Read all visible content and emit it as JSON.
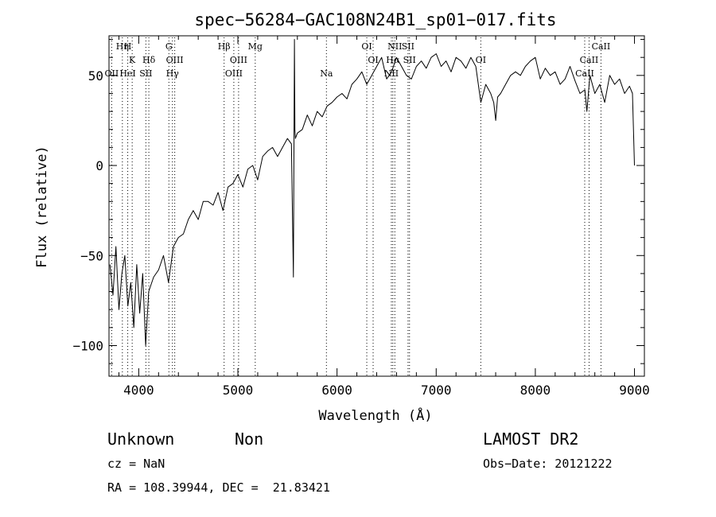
{
  "chart_data": {
    "type": "line",
    "title": "spec−56284−GAC108N24B1_sp01−017.fits",
    "xlabel": "Wavelength (Å)",
    "ylabel": "Flux (relative)",
    "xlim": [
      3700,
      9100
    ],
    "ylim": [
      -117,
      72
    ],
    "xticks": [
      4000,
      5000,
      6000,
      7000,
      8000,
      9000
    ],
    "yticks": [
      -100,
      -50,
      0,
      50
    ],
    "xtick_labels": [
      "4000",
      "5000",
      "6000",
      "7000",
      "8000",
      "9000"
    ],
    "ytick_labels": [
      "−100",
      "−50",
      "0",
      "50"
    ],
    "grid": false,
    "series": [
      {
        "color": "#000000",
        "x": [
          3710,
          3740,
          3770,
          3800,
          3830,
          3860,
          3890,
          3920,
          3950,
          3980,
          4010,
          4040,
          4070,
          4100,
          4150,
          4200,
          4250,
          4300,
          4350,
          4400,
          4450,
          4500,
          4550,
          4600,
          4650,
          4700,
          4750,
          4800,
          4850,
          4900,
          4950,
          5000,
          5050,
          5100,
          5150,
          5200,
          5250,
          5300,
          5350,
          5400,
          5450,
          5500,
          5540,
          5560,
          5570,
          5575,
          5580,
          5600,
          5650,
          5700,
          5750,
          5800,
          5850,
          5900,
          5950,
          6000,
          6050,
          6100,
          6150,
          6200,
          6250,
          6300,
          6350,
          6400,
          6450,
          6500,
          6550,
          6600,
          6650,
          6700,
          6750,
          6800,
          6850,
          6900,
          6950,
          7000,
          7050,
          7100,
          7150,
          7200,
          7250,
          7300,
          7350,
          7400,
          7450,
          7500,
          7550,
          7580,
          7600,
          7620,
          7650,
          7700,
          7750,
          7800,
          7850,
          7900,
          7950,
          8000,
          8050,
          8100,
          8150,
          8200,
          8250,
          8300,
          8350,
          8400,
          8450,
          8500,
          8520,
          8550,
          8600,
          8650,
          8700,
          8750,
          8800,
          8850,
          8900,
          8950,
          8980,
          9000
        ],
        "y": [
          -55,
          -72,
          -45,
          -80,
          -60,
          -50,
          -78,
          -65,
          -90,
          -55,
          -82,
          -60,
          -100,
          -70,
          -62,
          -58,
          -50,
          -65,
          -45,
          -40,
          -38,
          -30,
          -25,
          -30,
          -20,
          -20,
          -22,
          -15,
          -25,
          -12,
          -10,
          -5,
          -12,
          -2,
          0,
          -8,
          5,
          8,
          10,
          5,
          10,
          15,
          12,
          -62,
          70,
          20,
          15,
          18,
          20,
          28,
          22,
          30,
          27,
          33,
          35,
          38,
          40,
          37,
          45,
          48,
          52,
          45,
          50,
          55,
          60,
          48,
          52,
          60,
          55,
          50,
          48,
          55,
          58,
          54,
          60,
          62,
          55,
          58,
          52,
          60,
          58,
          54,
          60,
          55,
          35,
          45,
          40,
          35,
          25,
          38,
          40,
          45,
          50,
          52,
          50,
          55,
          58,
          60,
          48,
          54,
          50,
          52,
          45,
          48,
          55,
          47,
          40,
          42,
          30,
          50,
          40,
          45,
          35,
          50,
          45,
          48,
          40,
          44,
          40,
          0
        ]
      }
    ],
    "annotations": [
      {
        "text": "OII",
        "x": 3727,
        "level": 4
      },
      {
        "text": "Hη",
        "x": 3835,
        "level": 1
      },
      {
        "text": "H",
        "x": 3889,
        "level": 1
      },
      {
        "text": "HeI",
        "x": 3889,
        "level": 4
      },
      {
        "text": "K",
        "x": 3934,
        "level": 2
      },
      {
        "text": "SII",
        "x": 4072,
        "level": 4
      },
      {
        "text": "Hδ",
        "x": 4102,
        "level": 2
      },
      {
        "text": "G",
        "x": 4304,
        "level": 1
      },
      {
        "text": "OIII",
        "x": 4363,
        "level": 2
      },
      {
        "text": "Hγ",
        "x": 4340,
        "level": 4
      },
      {
        "text": "Hβ",
        "x": 4861,
        "level": 1
      },
      {
        "text": "OIII",
        "x": 5007,
        "level": 2
      },
      {
        "text": "OIII",
        "x": 4959,
        "level": 4
      },
      {
        "text": "Mg",
        "x": 5175,
        "level": 1
      },
      {
        "text": "Na",
        "x": 5893,
        "level": 4
      },
      {
        "text": "OI",
        "x": 6300,
        "level": 1
      },
      {
        "text": "OI",
        "x": 6364,
        "level": 3
      },
      {
        "text": "NII",
        "x": 6583,
        "level": 1
      },
      {
        "text": "SII",
        "x": 6716,
        "level": 1
      },
      {
        "text": "Hα",
        "x": 6563,
        "level": 3
      },
      {
        "text": "SII",
        "x": 6731,
        "level": 3
      },
      {
        "text": "NII",
        "x": 6548,
        "level": 4
      },
      {
        "text": "OI",
        "x": 7450,
        "level": 3
      },
      {
        "text": "CaII",
        "x": 8662,
        "level": 1
      },
      {
        "text": "CaII",
        "x": 8542,
        "level": 3
      },
      {
        "text": "CaII",
        "x": 8498,
        "level": 4
      }
    ]
  },
  "info": {
    "class_label": "Unknown",
    "subclass_label": "Non",
    "survey": "LAMOST DR2",
    "cz_text": "cz = NaN",
    "obs_date_text": "Obs−Date: 20121222",
    "coords_text": "RA = 108.39944, DEC =  21.83421"
  }
}
